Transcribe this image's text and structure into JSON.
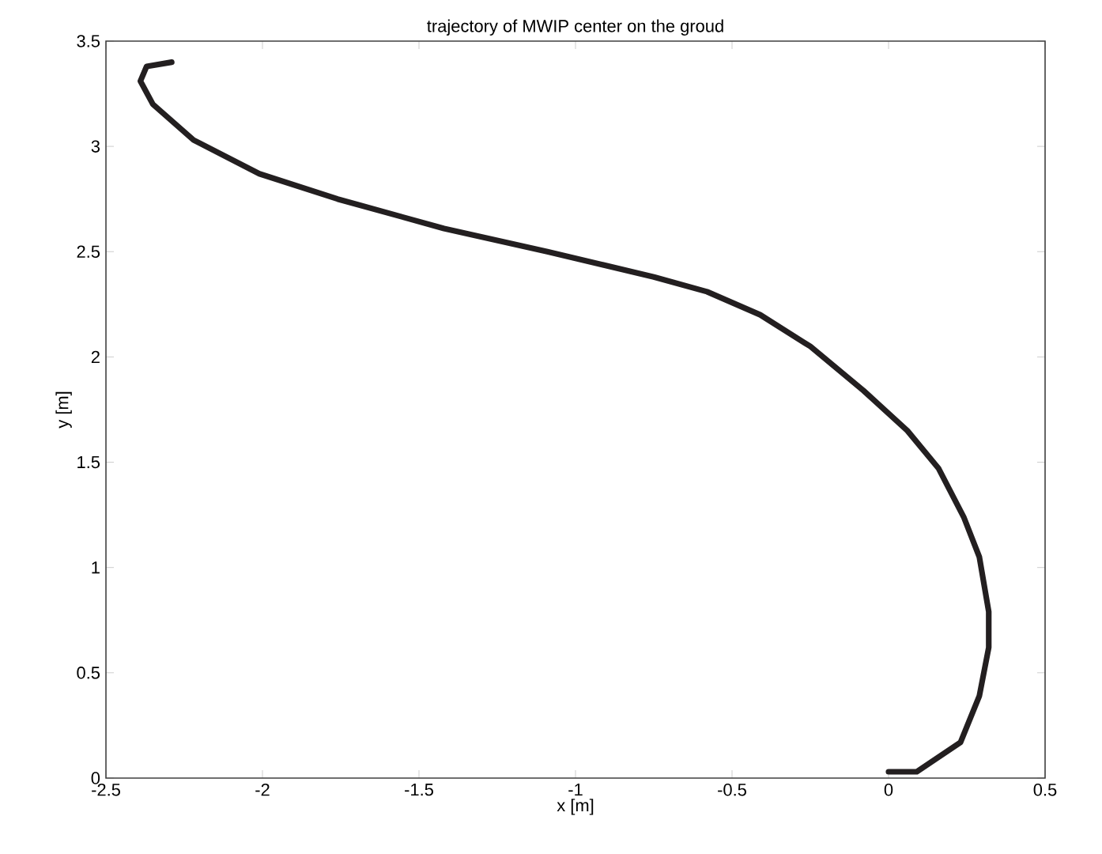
{
  "chart_data": {
    "type": "line",
    "title": "trajectory of MWIP center on the groud",
    "xlabel": "x [m]",
    "ylabel": "y [m]",
    "xlim": [
      -2.5,
      0.5
    ],
    "ylim": [
      0,
      3.5
    ],
    "xticks": [
      -2.5,
      -2,
      -1.5,
      -1,
      -0.5,
      0,
      0.5
    ],
    "yticks": [
      0,
      0.5,
      1,
      1.5,
      2,
      2.5,
      3,
      3.5
    ],
    "series": [
      {
        "color": "#231f20",
        "line_style": "solid",
        "x": [
          0.0,
          0.09,
          0.23,
          0.29,
          0.32,
          0.32,
          0.29,
          0.24,
          0.16,
          0.06,
          -0.08,
          -0.25,
          -0.41,
          -0.58,
          -0.75,
          -0.92,
          -1.09,
          -1.42,
          -1.76,
          -2.01,
          -2.22,
          -2.35,
          -2.39,
          -2.37,
          -2.29
        ],
        "values": [
          0.03,
          0.03,
          0.17,
          0.39,
          0.62,
          0.79,
          1.05,
          1.24,
          1.47,
          1.65,
          1.84,
          2.05,
          2.2,
          2.31,
          2.38,
          2.44,
          2.5,
          2.61,
          2.75,
          2.87,
          3.03,
          3.2,
          3.31,
          3.38,
          3.4
        ]
      }
    ]
  }
}
